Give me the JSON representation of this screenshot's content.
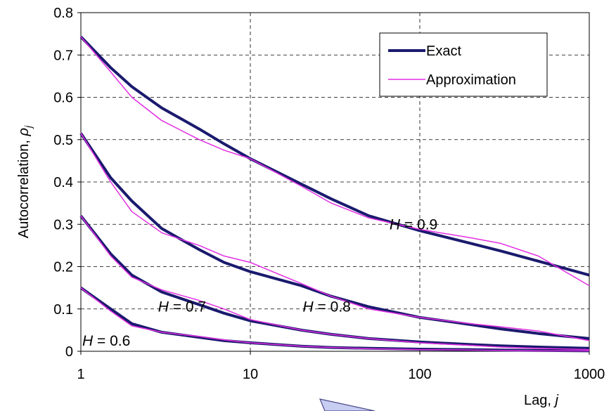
{
  "chart_data": {
    "type": "line",
    "title": "",
    "xlabel": "Lag, ",
    "xlabel_var": "j",
    "ylabel": "Autocorrelation, ",
    "ylabel_var": "ρ",
    "ylabel_sub": "j",
    "xscale": "log",
    "xlim": [
      1,
      1000
    ],
    "ylim": [
      0,
      0.8
    ],
    "x_ticks": [
      "1",
      "10",
      "100",
      "1000"
    ],
    "x_tick_values": [
      1,
      10,
      100,
      1000
    ],
    "y_ticks": [
      "0",
      "0.1",
      "0.2",
      "0.3",
      "0.4",
      "0.5",
      "0.6",
      "0.7",
      "0.8"
    ],
    "y_tick_values": [
      0,
      0.1,
      0.2,
      0.3,
      0.4,
      0.5,
      0.6,
      0.7,
      0.8
    ],
    "grid": true,
    "legend": {
      "placement": "top-right",
      "entries": [
        {
          "label": "Exact",
          "color": "#1a1a6e"
        },
        {
          "label": "Approximation",
          "color": "#e22ee2"
        }
      ]
    },
    "series": [
      {
        "name": "Exact",
        "group": "H = 0.9",
        "color": "#1a1a6e",
        "x": [
          1,
          1.5,
          2,
          3,
          5,
          7,
          10,
          20,
          30,
          50,
          100,
          200,
          300,
          500,
          1000
        ],
        "y": [
          0.743,
          0.67,
          0.625,
          0.575,
          0.525,
          0.49,
          0.455,
          0.395,
          0.36,
          0.32,
          0.285,
          0.255,
          0.237,
          0.213,
          0.18
        ]
      },
      {
        "name": "Approximation",
        "group": "H = 0.9",
        "color": "#e22ee2",
        "x": [
          1,
          1.5,
          2,
          3,
          5,
          7,
          10,
          20,
          30,
          50,
          100,
          200,
          300,
          500,
          1000
        ],
        "y": [
          0.743,
          0.66,
          0.6,
          0.545,
          0.5,
          0.475,
          0.455,
          0.39,
          0.35,
          0.315,
          0.288,
          0.268,
          0.255,
          0.225,
          0.155
        ]
      },
      {
        "name": "Exact",
        "group": "H = 0.8",
        "color": "#1a1a6e",
        "x": [
          1,
          1.5,
          2,
          3,
          5,
          7,
          10,
          20,
          30,
          50,
          100,
          200,
          300,
          500,
          1000
        ],
        "y": [
          0.515,
          0.41,
          0.355,
          0.29,
          0.24,
          0.21,
          0.188,
          0.155,
          0.13,
          0.105,
          0.08,
          0.063,
          0.053,
          0.042,
          0.03
        ]
      },
      {
        "name": "Approximation",
        "group": "H = 0.8",
        "color": "#e22ee2",
        "x": [
          1,
          1.5,
          2,
          3,
          5,
          7,
          10,
          20,
          30,
          50,
          100,
          200,
          300,
          500,
          1000
        ],
        "y": [
          0.515,
          0.4,
          0.33,
          0.28,
          0.25,
          0.225,
          0.21,
          0.16,
          0.13,
          0.1,
          0.08,
          0.065,
          0.058,
          0.048,
          0.025
        ]
      },
      {
        "name": "Exact",
        "group": "H = 0.7",
        "color": "#1a1a6e",
        "x": [
          1,
          1.5,
          2,
          3,
          5,
          7,
          10,
          20,
          30,
          50,
          100,
          200,
          300,
          500,
          1000
        ],
        "y": [
          0.32,
          0.23,
          0.18,
          0.14,
          0.11,
          0.09,
          0.072,
          0.05,
          0.04,
          0.03,
          0.022,
          0.016,
          0.013,
          0.01,
          0.007
        ]
      },
      {
        "name": "Approximation",
        "group": "H = 0.7",
        "color": "#e22ee2",
        "x": [
          1,
          1.5,
          2,
          3,
          5,
          7,
          10,
          20,
          30,
          50,
          100,
          200,
          300,
          500,
          1000
        ],
        "y": [
          0.32,
          0.225,
          0.175,
          0.145,
          0.12,
          0.1,
          0.075,
          0.05,
          0.04,
          0.03,
          0.02,
          0.014,
          0.01,
          0.007,
          0.004
        ]
      },
      {
        "name": "Exact",
        "group": "H = 0.6",
        "color": "#1a1a6e",
        "x": [
          1,
          1.5,
          2,
          3,
          5,
          7,
          10,
          20,
          30,
          50,
          100,
          200,
          300,
          500,
          1000
        ],
        "y": [
          0.15,
          0.1,
          0.065,
          0.045,
          0.033,
          0.025,
          0.02,
          0.012,
          0.009,
          0.007,
          0.005,
          0.004,
          0.003,
          0.002,
          0.001
        ]
      },
      {
        "name": "Approximation",
        "group": "H = 0.6",
        "color": "#e22ee2",
        "x": [
          1,
          1.5,
          2,
          3,
          5,
          7,
          10,
          20,
          30,
          50,
          100,
          200,
          300,
          500,
          1000
        ],
        "y": [
          0.15,
          0.095,
          0.06,
          0.045,
          0.035,
          0.027,
          0.02,
          0.012,
          0.009,
          0.006,
          0.004,
          0.003,
          0.002,
          0.001,
          0.001
        ]
      }
    ],
    "annotations": [
      {
        "var": "H",
        "text": " = 0.9",
        "x": 65,
        "y": 0.3
      },
      {
        "var": "H",
        "text": " = 0.8",
        "x": 20,
        "y": 0.105
      },
      {
        "var": "H",
        "text": " = 0.7",
        "x": 2.8,
        "y": 0.105
      },
      {
        "var": "H",
        "text": " = 0.6",
        "x": 1,
        "y": 0.025
      }
    ]
  }
}
